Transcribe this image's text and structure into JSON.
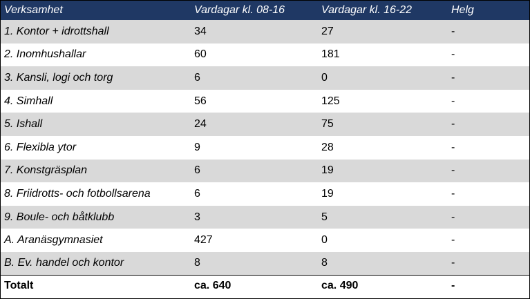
{
  "table": {
    "headers": [
      "Verksamhet",
      "Vardagar kl. 08-16",
      "Vardagar kl. 16-22",
      "Helg"
    ],
    "rows": [
      [
        "1. Kontor + idrottshall",
        "34",
        "27",
        "-"
      ],
      [
        "2. Inomhushallar",
        "60",
        "181",
        "-"
      ],
      [
        "3. Kansli, logi och torg",
        "6",
        "0",
        "-"
      ],
      [
        "4.  Simhall",
        "56",
        "125",
        "-"
      ],
      [
        "5. Ishall",
        "24",
        "75",
        "-"
      ],
      [
        "6. Flexibla ytor",
        "9",
        "28",
        "-"
      ],
      [
        "7. Konstgräsplan",
        "6",
        "19",
        "-"
      ],
      [
        "8. Friidrotts- och fotbollsarena",
        "6",
        "19",
        "-"
      ],
      [
        "9. Boule- och båtklubb",
        "3",
        "5",
        "-"
      ],
      [
        "A. Aranäsgymnasiet",
        "427",
        "0",
        "-"
      ],
      [
        "B. Ev. handel och kontor",
        "8",
        "8",
        "-"
      ]
    ],
    "total": [
      "Totalt",
      "ca. 640",
      "ca. 490",
      "-"
    ]
  },
  "colors": {
    "header_bg": "#1f3864",
    "header_text": "#ffffff",
    "stripe_bg": "#d9d9d9"
  }
}
